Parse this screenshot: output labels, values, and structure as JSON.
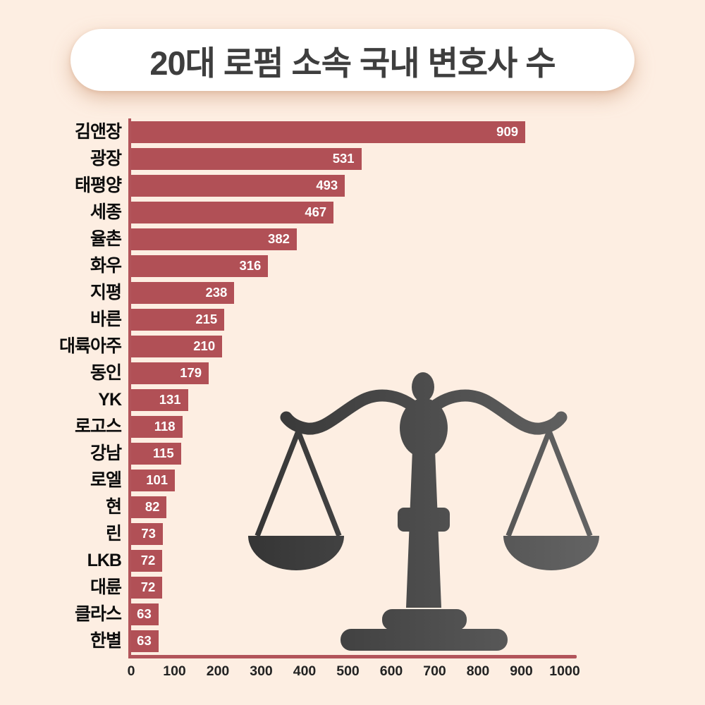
{
  "title": {
    "text": "20대 로펌 소속 국내 변호사 수"
  },
  "colors": {
    "background": "#fdeee2",
    "title_pill_background": "#ffffff",
    "title_text": "#3e3e3e",
    "bar": "#b15056",
    "axis": "#b2545a",
    "value_label": "#ffffff",
    "category_label": "#0d0d0d",
    "illustration_dark": "#3a3a3a",
    "illustration_light": "#636363"
  },
  "chart_data": {
    "type": "bar",
    "orientation": "horizontal",
    "title": "20대 로펌 소속 국내 변호사 수",
    "xlabel": "",
    "ylabel": "",
    "categories": [
      "김앤장",
      "광장",
      "태평양",
      "세종",
      "율촌",
      "화우",
      "지평",
      "바른",
      "대륙아주",
      "동인",
      "YK",
      "로고스",
      "강남",
      "로엘",
      "현",
      "린",
      "LKB",
      "대륜",
      "클라스",
      "한별"
    ],
    "values": [
      909,
      531,
      493,
      467,
      382,
      316,
      238,
      215,
      210,
      179,
      131,
      118,
      115,
      101,
      82,
      73,
      72,
      72,
      63,
      63
    ],
    "value_labels_shown": true,
    "xlim": [
      0,
      1000
    ],
    "x_ticks": [
      0,
      100,
      200,
      300,
      400,
      500,
      600,
      700,
      800,
      900,
      1000
    ],
    "grid": false,
    "legend": false
  },
  "illustration": {
    "name": "scales-of-justice"
  }
}
